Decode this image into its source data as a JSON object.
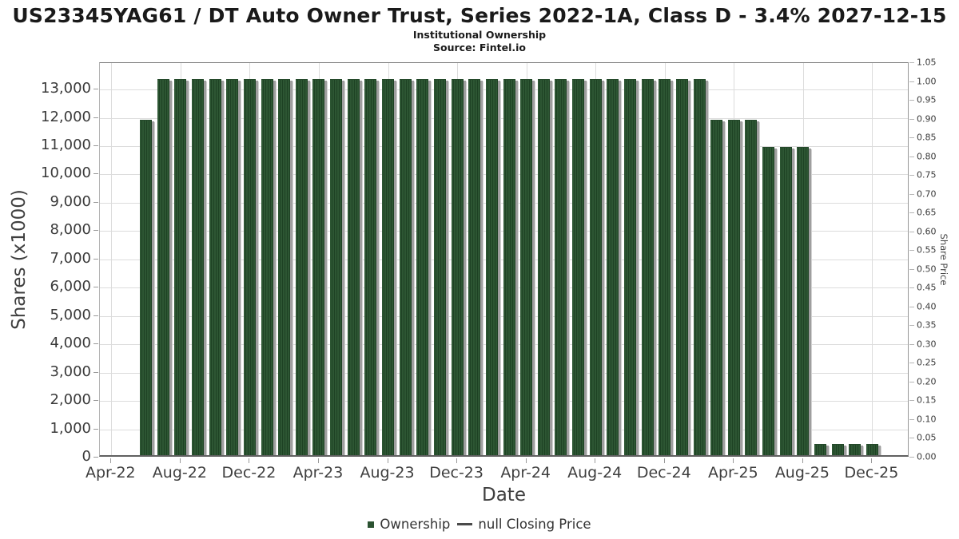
{
  "header": {
    "title": "US23345YAG61 / DT Auto Owner Trust, Series 2022-1A, Class D - 3.4% 2027-12-15",
    "subtitle": "Institutional Ownership",
    "source": "Source: Fintel.io"
  },
  "colors": {
    "bar_green": "#2b5231",
    "bar_shadow": "#9f9f9f",
    "dash_marker": "#4a4a4a",
    "gridline": "#dcdcdc",
    "tick_text": "#3a3a3a"
  },
  "chart_data": {
    "type": "bar",
    "title": "Institutional Ownership",
    "xlabel": "Date",
    "ylabel_left": "Shares (x1000)",
    "ylabel_right": "Share Price",
    "ylim_left": [
      0,
      13935
    ],
    "ylim_right": [
      0,
      1.05
    ],
    "grid": true,
    "legend_position": "bottom",
    "categories": [
      "Jun-22",
      "Jul-22",
      "Aug-22",
      "Sep-22",
      "Oct-22",
      "Nov-22",
      "Dec-22",
      "Jan-23",
      "Feb-23",
      "Mar-23",
      "Apr-23",
      "May-23",
      "Jun-23",
      "Jul-23",
      "Aug-23",
      "Sep-23",
      "Oct-23",
      "Nov-23",
      "Dec-23",
      "Jan-24",
      "Feb-24",
      "Mar-24",
      "Apr-24",
      "May-24",
      "Jun-24",
      "Jul-24",
      "Aug-24",
      "Sep-24",
      "Oct-24",
      "Nov-24",
      "Dec-24",
      "Jan-25",
      "Feb-25",
      "Mar-25",
      "Apr-25",
      "May-25",
      "Jun-25",
      "Jul-25",
      "Aug-25",
      "Sep-25",
      "Oct-25",
      "Nov-25",
      "Dec-25"
    ],
    "series": [
      {
        "name": "Ownership",
        "values": [
          11850,
          13300,
          13300,
          13300,
          13300,
          13300,
          13300,
          13300,
          13300,
          13300,
          13300,
          13300,
          13300,
          13300,
          13300,
          13300,
          13300,
          13300,
          13300,
          13300,
          13300,
          13300,
          13300,
          13300,
          13300,
          13300,
          13300,
          13300,
          13300,
          13300,
          13300,
          13300,
          13300,
          11850,
          11850,
          11850,
          10900,
          10900,
          10900,
          400,
          400,
          400,
          400
        ]
      },
      {
        "name": "null Closing Price",
        "values": []
      }
    ],
    "x_tick_labels": [
      "Apr-22",
      "Aug-22",
      "Dec-22",
      "Apr-23",
      "Aug-23",
      "Dec-23",
      "Apr-24",
      "Aug-24",
      "Dec-24",
      "Apr-25",
      "Aug-25",
      "Dec-25"
    ],
    "left_tick_labels": [
      "0",
      "1,000",
      "2,000",
      "3,000",
      "4,000",
      "5,000",
      "6,000",
      "7,000",
      "8,000",
      "9,000",
      "10,000",
      "11,000",
      "12,000",
      "13,000"
    ],
    "right_tick_labels": [
      "0.00",
      "0.05",
      "0.10",
      "0.15",
      "0.20",
      "0.25",
      "0.30",
      "0.35",
      "0.40",
      "0.45",
      "0.50",
      "0.55",
      "0.60",
      "0.65",
      "0.70",
      "0.75",
      "0.80",
      "0.85",
      "0.90",
      "0.95",
      "1.00",
      "1.05"
    ]
  },
  "legend": {
    "items": [
      {
        "label": "Ownership",
        "marker": "square",
        "color": "#2b5231"
      },
      {
        "label": "null Closing Price",
        "marker": "dash",
        "color": "#4a4a4a"
      }
    ]
  }
}
